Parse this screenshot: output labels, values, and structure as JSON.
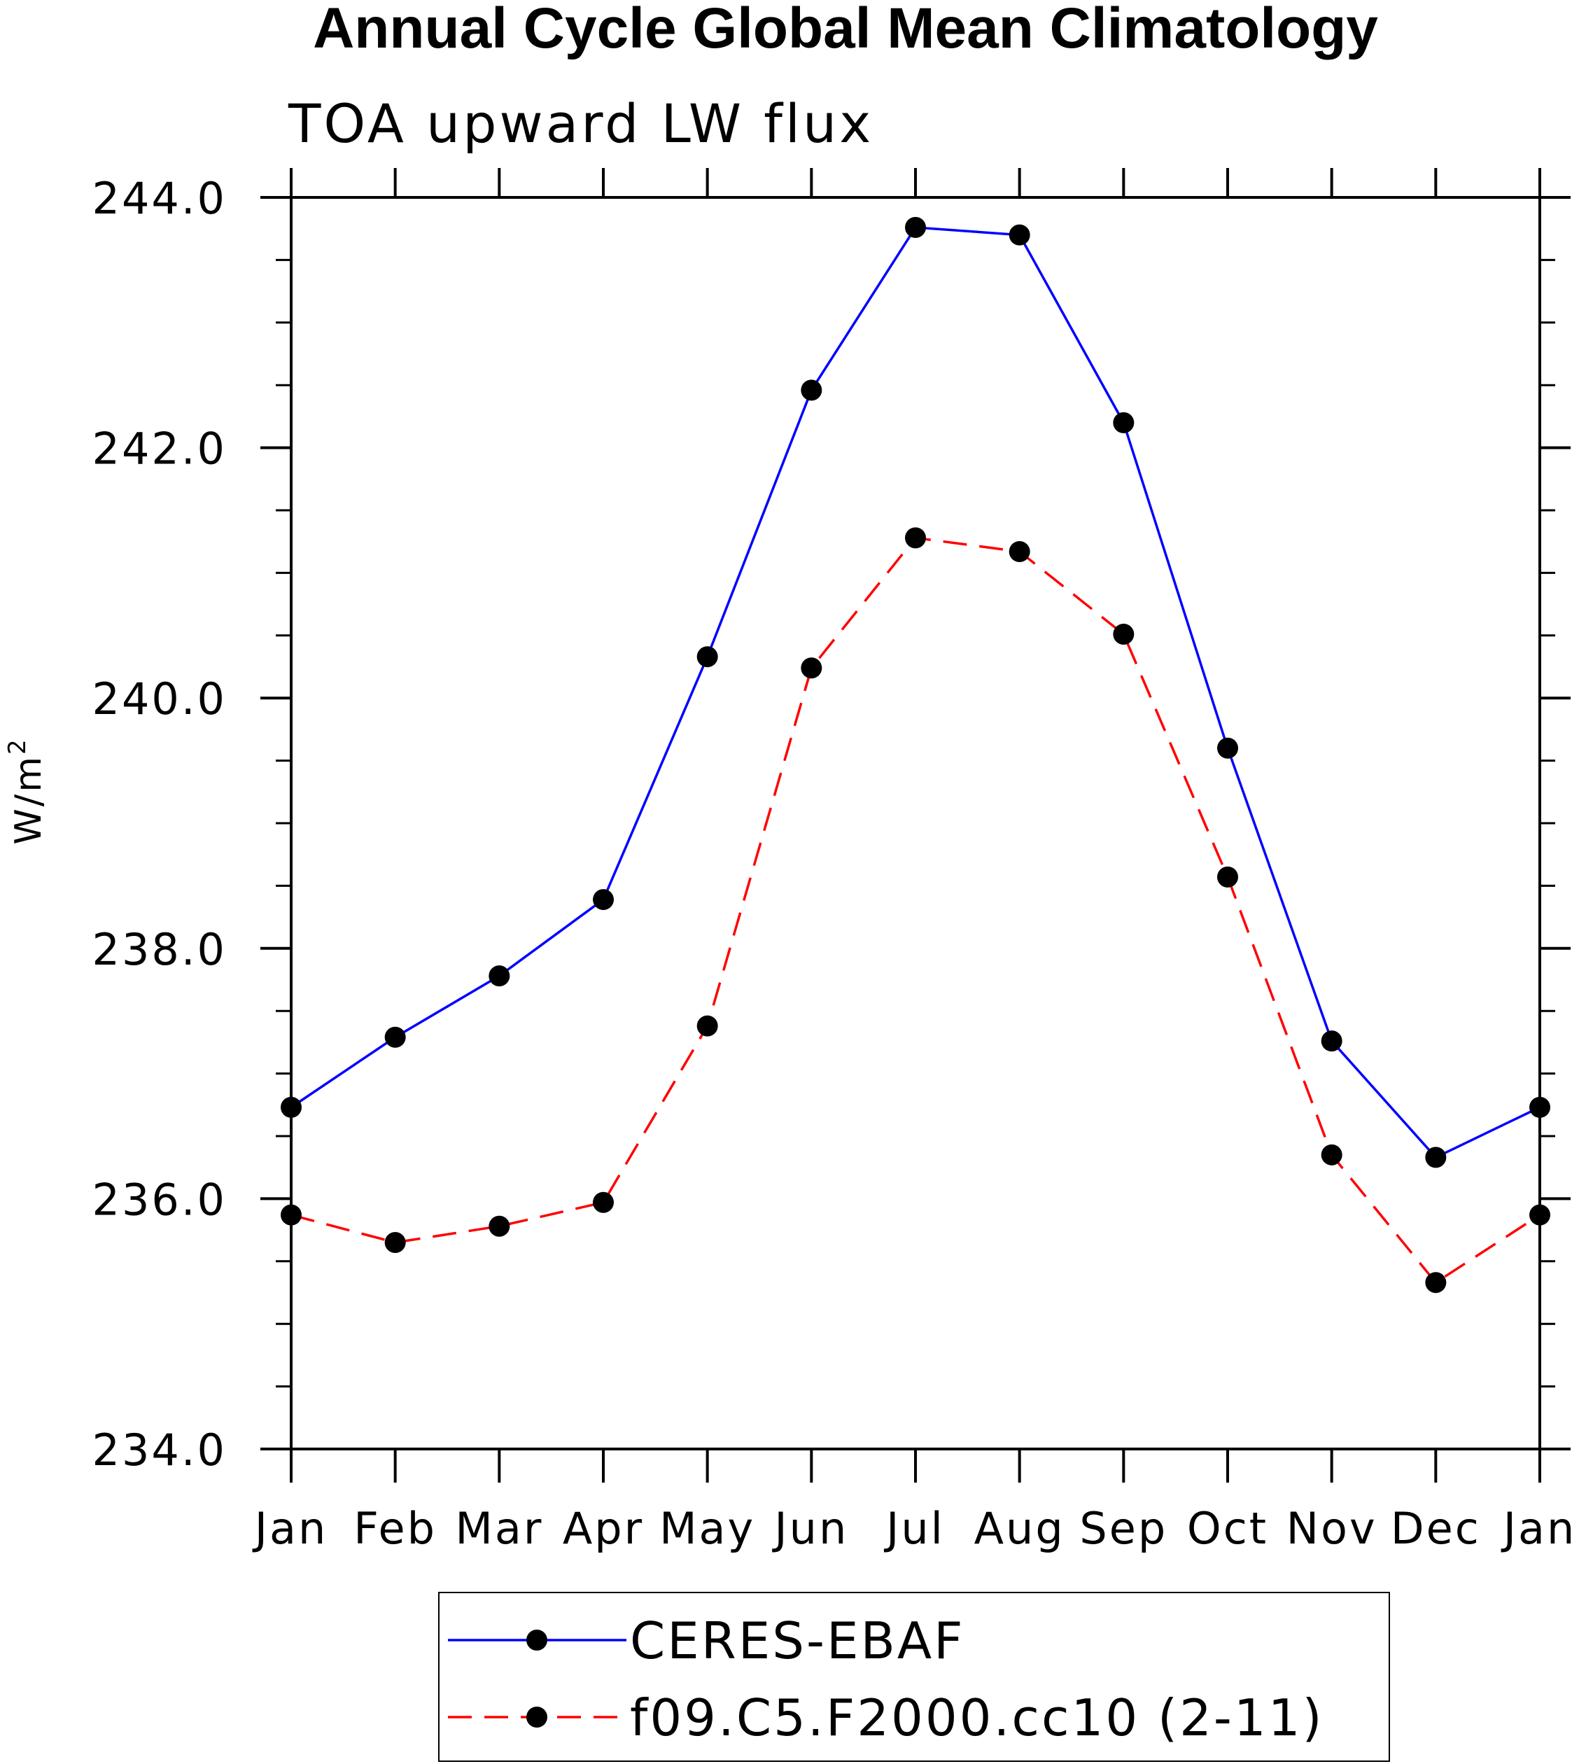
{
  "chart_data": {
    "type": "line",
    "title": "Annual Cycle Global Mean Climatology",
    "subtitle": "TOA upward LW flux",
    "xlabel": "",
    "ylabel": "W/m",
    "ylabel_superscript": "2",
    "categories": [
      "Jan",
      "Feb",
      "Mar",
      "Apr",
      "May",
      "Jun",
      "Jul",
      "Aug",
      "Sep",
      "Oct",
      "Nov",
      "Dec",
      "Jan"
    ],
    "ylim": [
      234.0,
      244.0
    ],
    "yticks": [
      "234.0",
      "236.0",
      "238.0",
      "240.0",
      "242.0",
      "244.0"
    ],
    "series": [
      {
        "name": "CERES-EBAF",
        "color": "#0000ff",
        "style": "solid",
        "values": [
          236.73,
          237.29,
          237.78,
          238.39,
          240.33,
          242.46,
          243.76,
          243.7,
          242.2,
          239.6,
          237.26,
          236.33,
          236.73
        ]
      },
      {
        "name": "f09.C5.F2000.cc10 (2-11)",
        "color": "#ff0000",
        "style": "dashed",
        "values": [
          235.87,
          235.65,
          235.78,
          235.97,
          237.38,
          240.24,
          241.28,
          241.17,
          240.51,
          238.57,
          236.35,
          235.33,
          235.87
        ]
      }
    ],
    "legend_position": "bottom-center",
    "marker_color": "#000000"
  }
}
